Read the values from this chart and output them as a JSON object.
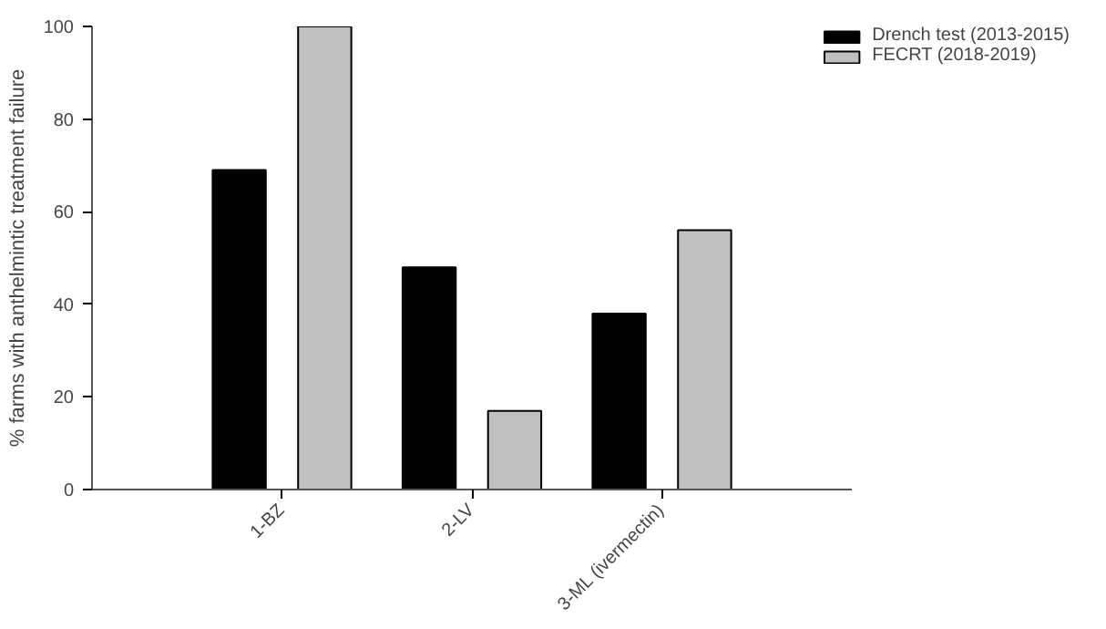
{
  "chart_data": {
    "type": "bar",
    "ylabel": "% farms with anthelmintic treatment failure",
    "categories": [
      "1-BZ",
      "2-LV",
      "3-ML (ivermectin)"
    ],
    "series": [
      {
        "name": "Drench test (2013-2015)",
        "color": "#000000",
        "values": [
          69,
          48,
          38
        ]
      },
      {
        "name": "FECRT (2018-2019)",
        "color": "#c0c0c0",
        "values": [
          100,
          17,
          56
        ]
      }
    ],
    "ylim": [
      0,
      100
    ],
    "yticks": [
      0,
      20,
      40,
      60,
      80,
      100
    ],
    "legend": "top right"
  }
}
